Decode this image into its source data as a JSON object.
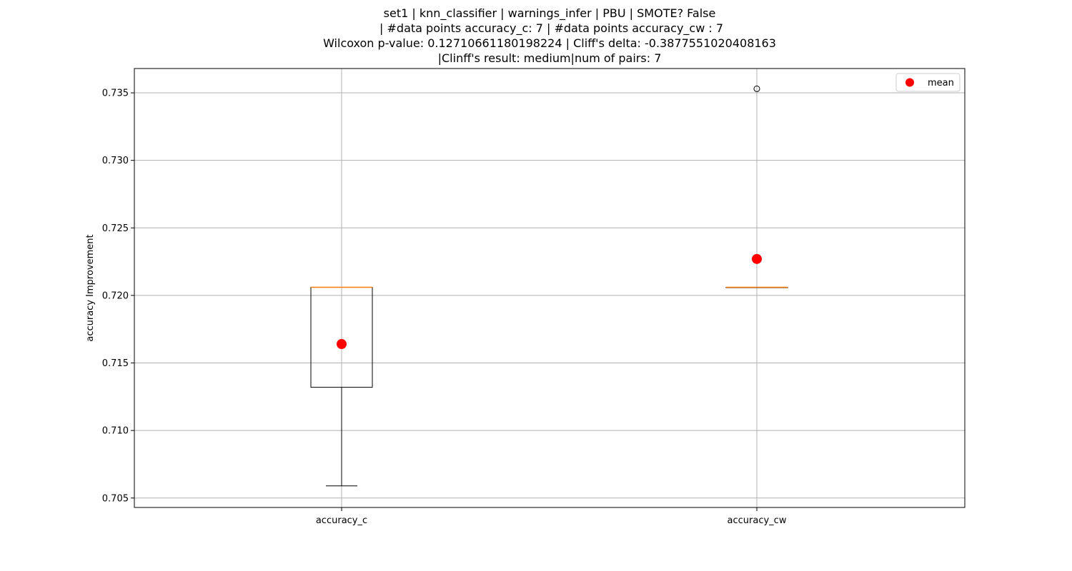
{
  "chart_data": {
    "type": "box",
    "title_lines": [
      "set1 | knn_classifier | warnings_infer | PBU | SMOTE? False",
      " | #data points accuracy_c: 7 | #data points accuracy_cw : 7",
      "Wilcoxon p-value: 0.12710661180198224 | Cliff's delta: -0.3877551020408163",
      "|Clinff's result: medium|num of pairs: 7"
    ],
    "ylabel": "accuracy Improvement",
    "ylim": [
      0.7043,
      0.7368
    ],
    "yticks": [
      0.705,
      0.71,
      0.715,
      0.72,
      0.725,
      0.73,
      0.735
    ],
    "ytick_labels": [
      "0.705",
      "0.710",
      "0.715",
      "0.720",
      "0.725",
      "0.730",
      "0.735"
    ],
    "categories": [
      "accuracy_c",
      "accuracy_cw"
    ],
    "boxes": [
      {
        "category": "accuracy_c",
        "whisker_low": 0.7059,
        "q1": 0.7132,
        "median": 0.7206,
        "q3": 0.7206,
        "whisker_high": 0.7206,
        "mean": 0.7164,
        "outliers": []
      },
      {
        "category": "accuracy_cw",
        "whisker_low": 0.7206,
        "q1": 0.7206,
        "median": 0.7206,
        "q3": 0.7206,
        "whisker_high": 0.7206,
        "mean": 0.7227,
        "outliers": [
          0.7353
        ]
      }
    ],
    "legend": {
      "entries": [
        "mean"
      ],
      "placement": "top-right"
    },
    "grid": true,
    "colors": {
      "box": "#000000",
      "median": "#ff7f0e",
      "mean": "#ff0000",
      "grid": "#b0b0b0"
    }
  }
}
